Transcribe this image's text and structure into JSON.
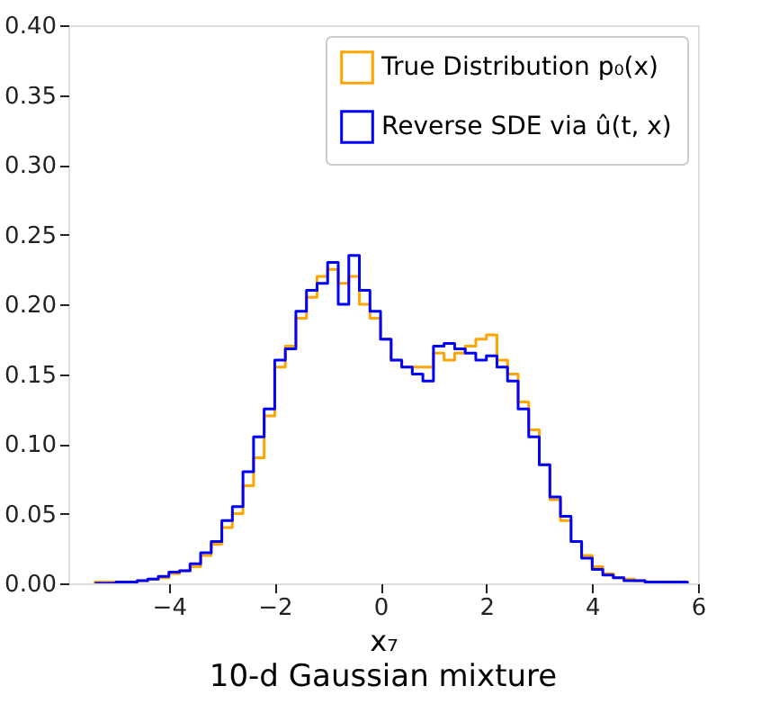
{
  "chart_data": {
    "type": "histogram",
    "title": "10-d Gaussian mixture",
    "xlabel": "x₇",
    "bins": [
      -5.4,
      -5.2,
      -5.0,
      -4.8,
      -4.6,
      -4.4,
      -4.2,
      -4.0,
      -3.8,
      -3.6,
      -3.4,
      -3.2,
      -3.0,
      -2.8,
      -2.6,
      -2.4,
      -2.2,
      -2.0,
      -1.8,
      -1.6,
      -1.4,
      -1.2,
      -1.0,
      -0.8,
      -0.6,
      -0.4,
      -0.2,
      0.0,
      0.2,
      0.4,
      0.6,
      0.8,
      1.0,
      1.2,
      1.4,
      1.6,
      1.8,
      2.0,
      2.2,
      2.4,
      2.6,
      2.8,
      3.0,
      3.2,
      3.4,
      3.6,
      3.8,
      4.0,
      4.2,
      4.4,
      4.6,
      4.8,
      5.0,
      5.2,
      5.4,
      5.6,
      5.8
    ],
    "series": [
      {
        "name": "True Distribution p₀(x)",
        "color": "#ffa500",
        "values": [
          0.001,
          0.001,
          0.001,
          0.001,
          0.002,
          0.003,
          0.004,
          0.007,
          0.009,
          0.012,
          0.02,
          0.028,
          0.04,
          0.05,
          0.07,
          0.09,
          0.12,
          0.155,
          0.17,
          0.19,
          0.205,
          0.22,
          0.225,
          0.215,
          0.22,
          0.2,
          0.19,
          0.175,
          0.16,
          0.155,
          0.155,
          0.155,
          0.165,
          0.16,
          0.165,
          0.17,
          0.175,
          0.178,
          0.16,
          0.15,
          0.13,
          0.11,
          0.085,
          0.06,
          0.045,
          0.03,
          0.02,
          0.012,
          0.007,
          0.004,
          0.003,
          0.002,
          0,
          0,
          0,
          0
        ]
      },
      {
        "name": "Reverse SDE via û(t, x)",
        "color": "#0000ff",
        "values": [
          0,
          0,
          0.001,
          0.001,
          0.002,
          0.003,
          0.005,
          0.008,
          0.009,
          0.014,
          0.022,
          0.03,
          0.045,
          0.055,
          0.08,
          0.105,
          0.125,
          0.16,
          0.168,
          0.195,
          0.21,
          0.215,
          0.23,
          0.2,
          0.235,
          0.21,
          0.195,
          0.175,
          0.16,
          0.155,
          0.15,
          0.145,
          0.17,
          0.172,
          0.168,
          0.165,
          0.16,
          0.163,
          0.155,
          0.145,
          0.125,
          0.105,
          0.085,
          0.062,
          0.048,
          0.03,
          0.018,
          0.01,
          0.006,
          0.004,
          0.002,
          0.002,
          0.001,
          0.001,
          0.001,
          0.001
        ]
      }
    ],
    "xlim": [
      -5.9,
      6
    ],
    "xticks": [
      -4,
      -2,
      0,
      2,
      4,
      6
    ],
    "ylim": [
      0,
      0.4
    ],
    "yticks": [
      {
        "value": 0,
        "label": "0.00"
      },
      {
        "value": 0.05,
        "label": "0.05"
      },
      {
        "value": 0.1,
        "label": "0.10"
      },
      {
        "value": 0.15,
        "label": "0.15"
      },
      {
        "value": 0.2,
        "label": "0.20"
      },
      {
        "value": 0.25,
        "label": "0.25"
      },
      {
        "value": 0.3,
        "label": "0.30"
      },
      {
        "value": 0.35,
        "label": "0.35"
      },
      {
        "value": 0.4,
        "label": "0.40"
      }
    ],
    "grid": false,
    "legend": "top right"
  }
}
